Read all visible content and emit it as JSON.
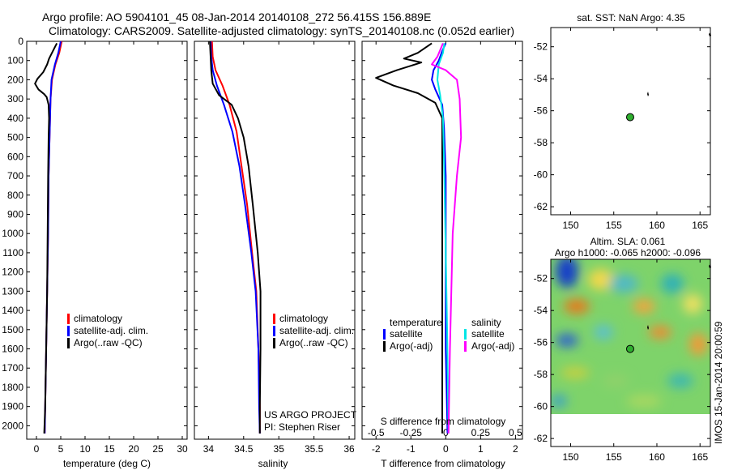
{
  "header": {
    "line1": "Argo profile: AO 5904101_45 08-Jan-2014 20140108_272 56.415S 156.889E",
    "line2": "Climatology: CARS2009. Satellite-adjusted climatology: synTS_20140108.nc (0.052d earlier)"
  },
  "colors": {
    "climatology": "#ff0000",
    "satellite": "#0000ff",
    "argo": "#000000",
    "sal_satellite": "#00e5e5",
    "sal_argo": "#ff00ff",
    "float": "#2fae2f"
  },
  "chart_data": [
    {
      "type": "line",
      "panel": "temperature",
      "xlabel": "temperature (deg C)",
      "ylabel": "",
      "xlim": [
        -2,
        31
      ],
      "ylim": [
        2070,
        0
      ],
      "xticks": [
        0,
        5,
        10,
        15,
        20,
        25,
        30
      ],
      "yticks": [
        0,
        100,
        200,
        300,
        400,
        500,
        600,
        700,
        800,
        900,
        1000,
        1100,
        1200,
        1300,
        1400,
        1500,
        1600,
        1700,
        1800,
        1900,
        2000
      ],
      "legend": [
        "climatology",
        "satellite-adj. clim.",
        "Argo(..raw -QC)"
      ],
      "series": [
        {
          "name": "climatology",
          "points": [
            [
              5.2,
              0
            ],
            [
              4.7,
              60
            ],
            [
              3.9,
              120
            ],
            [
              3.2,
              200
            ],
            [
              2.9,
              300
            ],
            [
              2.8,
              400
            ],
            [
              2.6,
              600
            ],
            [
              2.5,
              700
            ],
            [
              2.4,
              1000
            ],
            [
              2.2,
              1300
            ],
            [
              2.0,
              1600
            ],
            [
              1.8,
              1900
            ],
            [
              1.7,
              2040
            ]
          ]
        },
        {
          "name": "satellite-adj. clim.",
          "points": [
            [
              5.0,
              0
            ],
            [
              4.5,
              60
            ],
            [
              3.8,
              120
            ],
            [
              3.1,
              200
            ],
            [
              2.9,
              300
            ],
            [
              2.8,
              400
            ],
            [
              2.6,
              600
            ],
            [
              2.5,
              700
            ],
            [
              2.4,
              1000
            ],
            [
              2.2,
              1300
            ],
            [
              2.0,
              1600
            ],
            [
              1.8,
              1900
            ],
            [
              1.7,
              2040
            ]
          ]
        },
        {
          "name": "Argo(..raw -QC)",
          "points": [
            [
              4.2,
              10
            ],
            [
              3.8,
              30
            ],
            [
              3.2,
              60
            ],
            [
              2.6,
              90
            ],
            [
              2.2,
              120
            ],
            [
              1.4,
              160
            ],
            [
              0.2,
              195
            ],
            [
              -0.3,
              220
            ],
            [
              0.4,
              250
            ],
            [
              1.6,
              275
            ],
            [
              2.1,
              290
            ],
            [
              2.5,
              330
            ],
            [
              2.6,
              400
            ],
            [
              2.5,
              500
            ],
            [
              2.4,
              700
            ],
            [
              2.3,
              1000
            ],
            [
              2.2,
              1300
            ],
            [
              2.0,
              1600
            ],
            [
              1.8,
              1900
            ],
            [
              1.6,
              2040
            ]
          ]
        }
      ]
    },
    {
      "type": "line",
      "panel": "salinity",
      "xlabel": "salinity",
      "xlim": [
        33.8,
        36.08
      ],
      "ylim": [
        2070,
        0
      ],
      "xticks": [
        34,
        34.5,
        35,
        35.5,
        36
      ],
      "xticklabels": [
        "34",
        "34.5",
        "35",
        "35.5",
        "36"
      ],
      "legend": [
        "climatology",
        "satellite-adj. clim.",
        "Argo(..raw -QC)"
      ],
      "credit": [
        "US ARGO PROJECT",
        "PI: Stephen Riser"
      ],
      "series": [
        {
          "name": "climatology",
          "points": [
            [
              34.05,
              0
            ],
            [
              34.06,
              80
            ],
            [
              34.1,
              150
            ],
            [
              34.2,
              230
            ],
            [
              34.3,
              330
            ],
            [
              34.4,
              470
            ],
            [
              34.47,
              650
            ],
            [
              34.55,
              850
            ],
            [
              34.62,
              1100
            ],
            [
              34.68,
              1300
            ],
            [
              34.71,
              1600
            ],
            [
              34.73,
              1900
            ],
            [
              34.73,
              2040
            ]
          ]
        },
        {
          "name": "satellite-adj. clim.",
          "points": [
            [
              34.03,
              0
            ],
            [
              34.04,
              80
            ],
            [
              34.06,
              150
            ],
            [
              34.12,
              230
            ],
            [
              34.22,
              330
            ],
            [
              34.34,
              470
            ],
            [
              34.44,
              650
            ],
            [
              34.52,
              850
            ],
            [
              34.61,
              1100
            ],
            [
              34.67,
              1300
            ],
            [
              34.71,
              1600
            ],
            [
              34.72,
              1900
            ],
            [
              34.73,
              2040
            ]
          ]
        },
        {
          "name": "Argo(..raw -QC)",
          "points": [
            [
              34.02,
              0
            ],
            [
              34.03,
              80
            ],
            [
              34.04,
              150
            ],
            [
              34.06,
              220
            ],
            [
              34.15,
              280
            ],
            [
              34.33,
              330
            ],
            [
              34.42,
              400
            ],
            [
              34.5,
              500
            ],
            [
              34.57,
              650
            ],
            [
              34.63,
              850
            ],
            [
              34.7,
              1100
            ],
            [
              34.74,
              1300
            ],
            [
              34.74,
              1600
            ],
            [
              34.73,
              1900
            ],
            [
              34.73,
              2040
            ]
          ]
        }
      ]
    },
    {
      "type": "line",
      "panel": "difference",
      "xlabel": "T difference from climatology",
      "top_label": "S difference from climatology",
      "t_xlim": [
        -2.4,
        2.2
      ],
      "t_xticks": [
        -2,
        -1,
        0,
        1,
        2
      ],
      "s_xlim": [
        -0.6,
        0.55
      ],
      "s_xticks": [
        -0.5,
        -0.25,
        0,
        0.25,
        0.5
      ],
      "s_xticklabels": [
        "-0.5",
        "-0.25",
        "0",
        "0.25",
        "0.5"
      ],
      "ylim": [
        2070,
        0
      ],
      "legend_temperature": {
        "title": "temperature",
        "items": [
          "satellite",
          "Argo(-adj)"
        ]
      },
      "legend_salinity": {
        "title": "salinity",
        "items": [
          "satellite",
          "Argo(-adj)"
        ]
      },
      "series": [
        {
          "name": "satellite",
          "points": [
            [
              0.0,
              10
            ],
            [
              -0.1,
              50
            ],
            [
              -0.2,
              100
            ],
            [
              -0.35,
              150
            ],
            [
              -0.4,
              200
            ],
            [
              -0.3,
              250
            ],
            [
              -0.1,
              330
            ],
            [
              -0.05,
              450
            ],
            [
              0.0,
              700
            ],
            [
              0.0,
              1200
            ],
            [
              0.0,
              1600
            ],
            [
              0.05,
              2040
            ]
          ]
        },
        {
          "name": "Argo(-adj)",
          "points": [
            [
              -0.4,
              10
            ],
            [
              -0.8,
              60
            ],
            [
              -1.2,
              90
            ],
            [
              -0.7,
              110
            ],
            [
              -1.4,
              150
            ],
            [
              -2.0,
              190
            ],
            [
              -1.5,
              230
            ],
            [
              -0.8,
              270
            ],
            [
              -0.3,
              320
            ],
            [
              -0.1,
              400
            ],
            [
              -0.1,
              600
            ],
            [
              -0.1,
              1000
            ],
            [
              -0.1,
              1400
            ],
            [
              -0.1,
              1800
            ],
            [
              -0.1,
              2040
            ]
          ]
        },
        {
          "name": "satellite",
          "points": [
            [
              -0.01,
              10
            ],
            [
              -0.02,
              60
            ],
            [
              -0.05,
              120
            ],
            [
              -0.06,
              200
            ],
            [
              -0.04,
              280
            ],
            [
              -0.02,
              400
            ],
            [
              -0.01,
              700
            ],
            [
              0.0,
              1100
            ],
            [
              0.01,
              1500
            ],
            [
              0.02,
              2040
            ]
          ]
        },
        {
          "name": "Argo(-adj)",
          "points": [
            [
              -0.02,
              10
            ],
            [
              -0.06,
              80
            ],
            [
              -0.1,
              120
            ],
            [
              0.0,
              150
            ],
            [
              0.08,
              200
            ],
            [
              0.1,
              300
            ],
            [
              0.11,
              500
            ],
            [
              0.08,
              700
            ],
            [
              0.05,
              1000
            ],
            [
              0.04,
              1300
            ],
            [
              0.03,
              1600
            ],
            [
              0.02,
              2040
            ]
          ]
        }
      ]
    },
    {
      "type": "scatter",
      "panel": "sst-map",
      "title": "sat. SST: NaN Argo: 4.35",
      "xlim": [
        147.7,
        166.2
      ],
      "ylim": [
        -62.5,
        -50.8
      ],
      "xticks": [
        150,
        155,
        160,
        165
      ],
      "yticks": [
        -52,
        -54,
        -56,
        -58,
        -60,
        -62
      ],
      "points": [
        [
          156.9,
          -56.4
        ]
      ]
    },
    {
      "type": "heatmap",
      "panel": "altimetry-map",
      "title": [
        "Altim. SLA: 0.061",
        "Argo h1000: -0.065 h2000: -0.096"
      ],
      "side_label": "IMOS 15-Jan-2014 20:00:59",
      "xlim": [
        147.7,
        166.2
      ],
      "ylim": [
        -62.5,
        -50.8
      ],
      "xticks": [
        150,
        155,
        160,
        165
      ],
      "yticks": [
        -52,
        -54,
        -56,
        -58,
        -60,
        -62
      ],
      "points": [
        [
          156.9,
          -56.4
        ]
      ]
    }
  ]
}
